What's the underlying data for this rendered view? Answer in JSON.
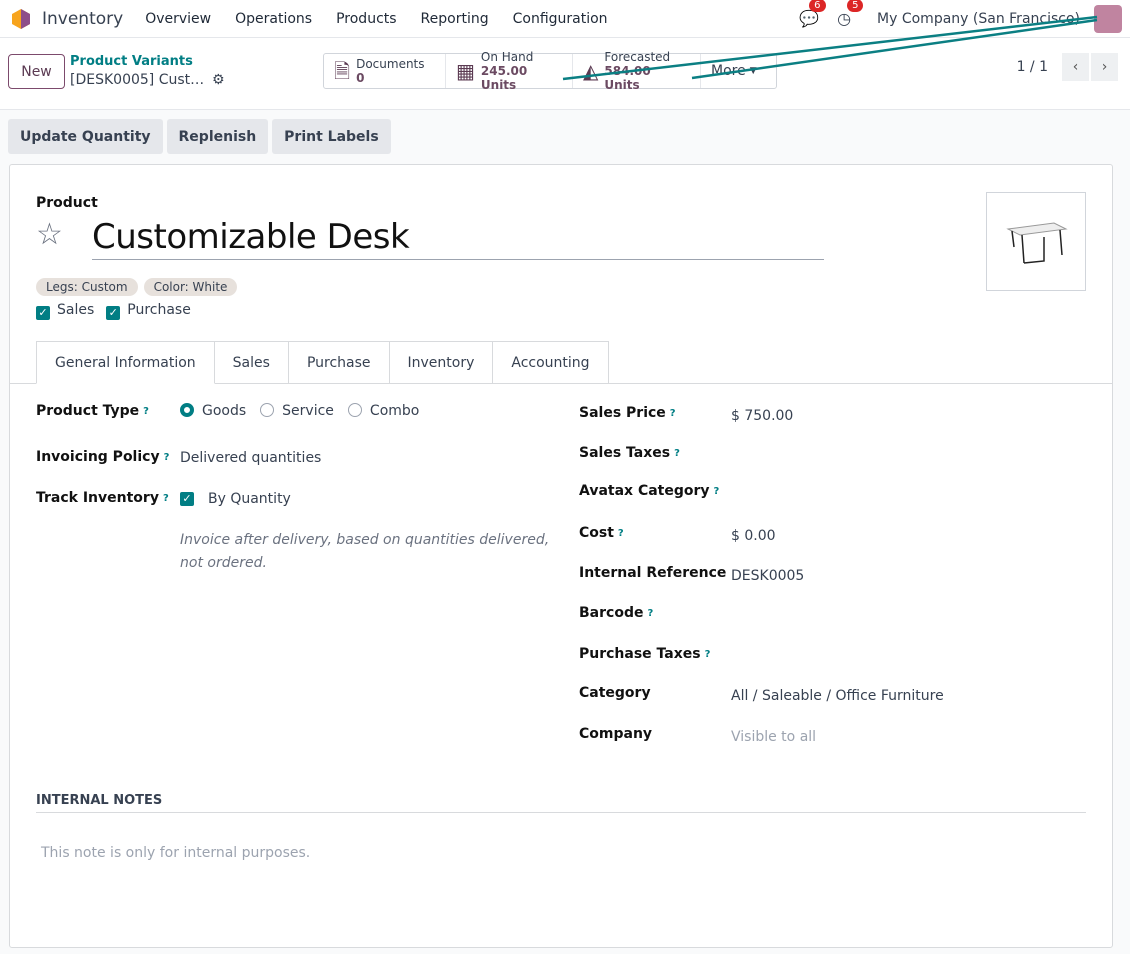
{
  "nav": {
    "app": "Inventory",
    "menus": [
      "Overview",
      "Operations",
      "Products",
      "Reporting",
      "Configuration"
    ],
    "messages_count": "6",
    "activities_count": "5",
    "company": "My Company (San Francisco)"
  },
  "control": {
    "new_label": "New",
    "breadcrumb_parent": "Product Variants",
    "breadcrumb_current": "[DESK0005] Cust…",
    "stats": [
      {
        "label": "Documents",
        "value": "0",
        "icon": "document-icon"
      },
      {
        "label": "On Hand",
        "value": "245.00 Units",
        "icon": "cubes-icon"
      },
      {
        "label": "Forecasted",
        "value": "584.00 Units",
        "icon": "area-chart-icon"
      }
    ],
    "more_label": "More",
    "pager": "1 / 1"
  },
  "actions": [
    "Update Quantity",
    "Replenish",
    "Print Labels"
  ],
  "form": {
    "product_label": "Product",
    "name": "Customizable Desk",
    "tags": [
      "Legs: Custom",
      "Color: White"
    ],
    "sales_label": "Sales",
    "purchase_label": "Purchase",
    "tabs": [
      "General Information",
      "Sales",
      "Purchase",
      "Inventory",
      "Accounting"
    ],
    "left": {
      "product_type_label": "Product Type",
      "types": [
        "Goods",
        "Service",
        "Combo"
      ],
      "selected_type": "Goods",
      "invoicing_label": "Invoicing Policy",
      "invoicing_value": "Delivered quantities",
      "track_label": "Track Inventory",
      "track_value": "By Quantity",
      "help": "Invoice after delivery, based on quantities delivered, not ordered."
    },
    "right": [
      {
        "label": "Sales Price",
        "value": "$ 750.00",
        "help": true
      },
      {
        "label": "Sales Taxes",
        "value": "",
        "help": true
      },
      {
        "label": "Avatax Category",
        "value": "",
        "help": true
      },
      {
        "label": "Cost",
        "value": "$ 0.00",
        "help": true
      },
      {
        "label": "Internal Reference",
        "value": "DESK0005",
        "help": false
      },
      {
        "label": "Barcode",
        "value": "",
        "help": true
      },
      {
        "label": "Purchase Taxes",
        "value": "",
        "help": true
      },
      {
        "label": "Category",
        "value": "All / Saleable / Office Furniture",
        "help": false
      },
      {
        "label": "Company",
        "value": "Visible to all",
        "help": false
      }
    ],
    "notes_heading": "INTERNAL NOTES",
    "notes_placeholder": "This note is only for internal purposes."
  },
  "colors": {
    "accent": "#017e84",
    "brand": "#714b67",
    "annotation_line": "#0b7f83"
  }
}
